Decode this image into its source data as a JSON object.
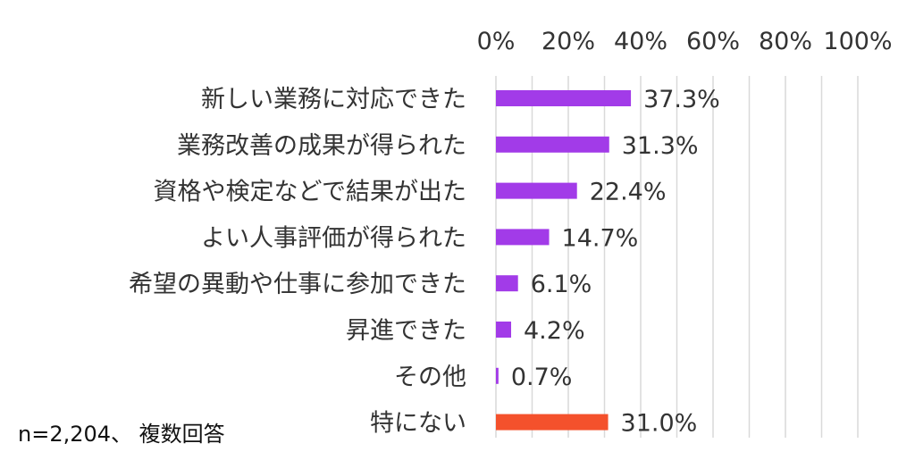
{
  "note": "n=2,204、 複数回答",
  "colors": {
    "purple": "#a23be8",
    "orange": "#f4512c",
    "grid": "#d9d9d9"
  },
  "chart_data": {
    "type": "bar",
    "orientation": "horizontal",
    "title": "",
    "xlabel": "",
    "ylabel": "",
    "xlim": [
      0,
      100
    ],
    "ticks": [
      "0%",
      "20%",
      "40%",
      "60%",
      "80%",
      "100%"
    ],
    "tick_values": [
      0,
      20,
      40,
      60,
      80,
      100
    ],
    "grid": true,
    "legend": "none",
    "categories": [
      "新しい業務に対応できた",
      "業務改善の成果が得られた",
      "資格や検定などで結果が出た",
      "よい人事評価が得られた",
      "希望の異動や仕事に参加できた",
      "昇進できた",
      "その他",
      "特にない"
    ],
    "values": [
      37.3,
      31.3,
      22.4,
      14.7,
      6.1,
      4.2,
      0.7,
      31.0
    ],
    "labels": [
      "37.3%",
      "31.3%",
      "22.4%",
      "14.7%",
      "6.1%",
      "4.2%",
      "0.7%",
      "31.0%"
    ],
    "bar_colors": [
      "purple",
      "purple",
      "purple",
      "purple",
      "purple",
      "purple",
      "purple",
      "orange"
    ]
  }
}
